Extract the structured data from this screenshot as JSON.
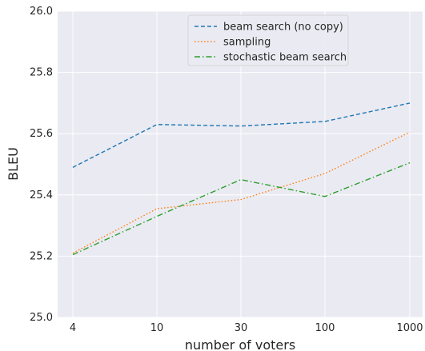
{
  "chart_data": {
    "type": "line",
    "xlabel": "number of voters",
    "ylabel": "BLEU",
    "x": [
      4,
      10,
      30,
      100,
      1000
    ],
    "x_tick_labels": [
      "4",
      "10",
      "30",
      "100",
      "1000"
    ],
    "ylim": [
      25.0,
      26.0
    ],
    "y_ticks": [
      25.0,
      25.2,
      25.4,
      25.6,
      25.8,
      26.0
    ],
    "y_tick_labels": [
      "25.0",
      "25.2",
      "25.4",
      "25.6",
      "25.8",
      "26.0"
    ],
    "grid": true,
    "legend_position": "top-center",
    "series": [
      {
        "name": "beam search (no copy)",
        "values": [
          25.49,
          25.63,
          25.625,
          25.64,
          25.7
        ],
        "color": "#1f77b4",
        "style": "dashed"
      },
      {
        "name": "sampling",
        "values": [
          25.21,
          25.355,
          25.385,
          25.47,
          25.605
        ],
        "color": "#ff7f0e",
        "style": "dotted"
      },
      {
        "name": "stochastic beam search",
        "values": [
          25.205,
          25.33,
          25.45,
          25.395,
          25.505
        ],
        "color": "#2ca02c",
        "style": "dashdot"
      }
    ]
  }
}
